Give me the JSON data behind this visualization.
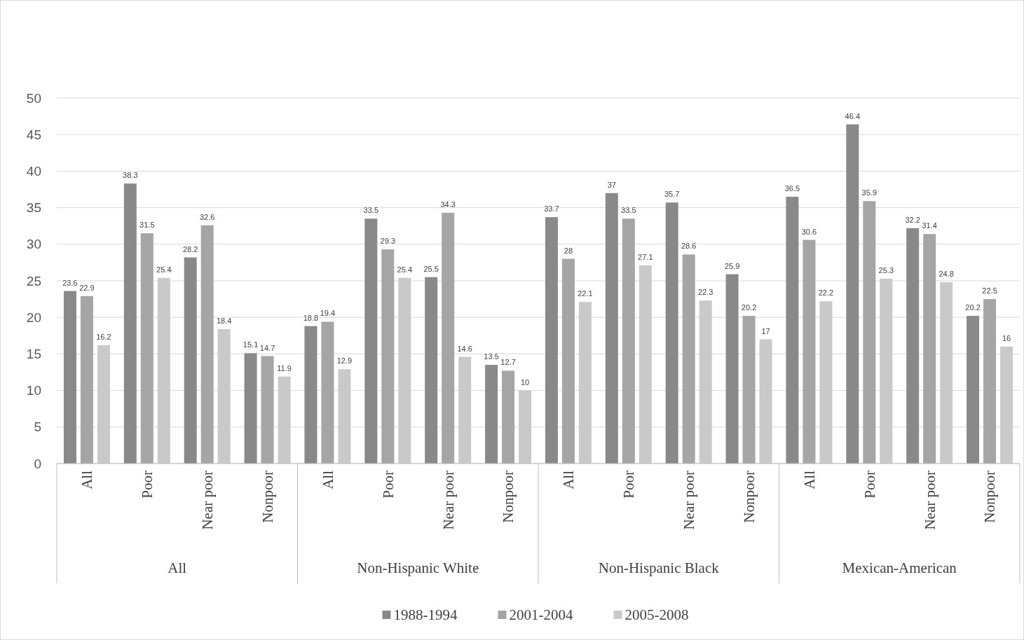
{
  "chart_data": {
    "type": "bar",
    "categories": [
      "All",
      "Poor",
      "Near poor",
      "Nonpoor",
      "All",
      "Poor",
      "Near poor",
      "Nonpoor",
      "All",
      "Poor",
      "Near poor",
      "Nonpoor",
      "All",
      "Poor",
      "Near poor",
      "Nonpoor"
    ],
    "annotations": [
      "All",
      "Non-Hispanic White",
      "Non-Hispanic Black",
      "Mexican-American"
    ],
    "series": [
      {
        "name": "1988-1994",
        "color": "#898989",
        "values": [
          23.6,
          38.3,
          28.2,
          15.1,
          18.8,
          33.5,
          25.5,
          13.5,
          33.7,
          37,
          35.7,
          25.9,
          36.5,
          46.4,
          32.2,
          20.2
        ]
      },
      {
        "name": "2001-2004",
        "color": "#a5a5a5",
        "values": [
          22.9,
          31.5,
          32.6,
          14.7,
          19.4,
          29.3,
          34.3,
          12.7,
          28,
          33.5,
          28.6,
          20.2,
          30.6,
          35.9,
          31.4,
          22.5
        ]
      },
      {
        "name": "2005-2008",
        "color": "#c9c9c9",
        "values": [
          16.2,
          25.4,
          18.4,
          11.9,
          12.9,
          25.4,
          14.6,
          10,
          22.1,
          27.1,
          22.3,
          17,
          22.2,
          25.3,
          24.8,
          16
        ]
      }
    ],
    "ylim": [
      0,
      50
    ],
    "yticks": [
      0,
      5,
      10,
      15,
      20,
      25,
      30,
      35,
      40,
      45,
      50
    ],
    "grid": "y",
    "legend": "bottom",
    "data_labels": true
  }
}
